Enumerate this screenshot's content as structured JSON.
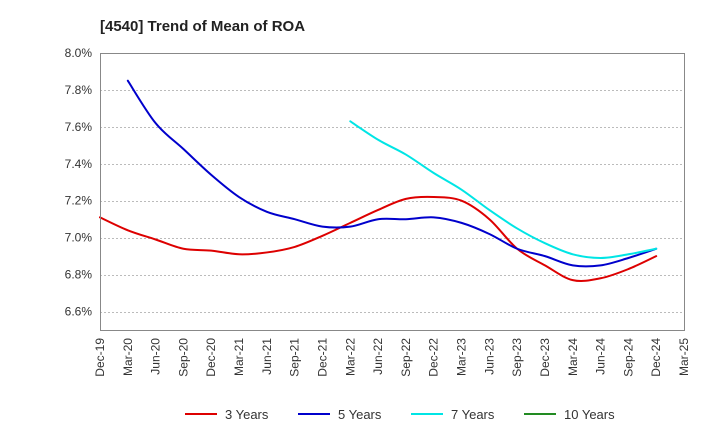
{
  "chart_data": {
    "type": "line",
    "title": "[4540]  Trend of Mean of ROA",
    "xlabel": "",
    "ylabel": "",
    "y_unit": "%",
    "ylim": [
      6.5,
      8.0
    ],
    "y_ticks": [
      6.6,
      6.8,
      7.0,
      7.2,
      7.4,
      7.6,
      7.8,
      8.0
    ],
    "y_tick_labels": [
      "6.6%",
      "6.8%",
      "7.0%",
      "7.2%",
      "7.4%",
      "7.6%",
      "7.8%",
      "8.0%"
    ],
    "x_tick_labels": [
      "Dec-19",
      "Mar-20",
      "Jun-20",
      "Sep-20",
      "Dec-20",
      "Mar-21",
      "Jun-21",
      "Sep-21",
      "Dec-21",
      "Mar-22",
      "Jun-22",
      "Sep-22",
      "Dec-22",
      "Mar-23",
      "Jun-23",
      "Sep-23",
      "Dec-23",
      "Mar-24",
      "Jun-24",
      "Sep-24",
      "Dec-24",
      "Mar-25"
    ],
    "grid": "horizontal",
    "legend_position": "bottom",
    "series": [
      {
        "name": "3 Years",
        "color": "#dd0000",
        "start_index": 0,
        "values": [
          7.11,
          7.04,
          6.99,
          6.94,
          6.93,
          6.91,
          6.92,
          6.95,
          7.01,
          7.08,
          7.15,
          7.21,
          7.22,
          7.2,
          7.1,
          6.94,
          6.85,
          6.77,
          6.78,
          6.83,
          6.9
        ]
      },
      {
        "name": "5 Years",
        "color": "#0000cc",
        "start_index": 1,
        "values": [
          7.85,
          7.62,
          7.48,
          7.34,
          7.22,
          7.14,
          7.1,
          7.06,
          7.06,
          7.1,
          7.1,
          7.11,
          7.08,
          7.02,
          6.94,
          6.9,
          6.85,
          6.85,
          6.89,
          6.94
        ]
      },
      {
        "name": "7 Years",
        "color": "#00e5e5",
        "start_index": 9,
        "values": [
          7.63,
          7.53,
          7.45,
          7.35,
          7.26,
          7.15,
          7.05,
          6.97,
          6.91,
          6.89,
          6.91,
          6.94
        ]
      },
      {
        "name": "10 Years",
        "color": "#228B22",
        "start_index": 0,
        "values": []
      }
    ]
  }
}
